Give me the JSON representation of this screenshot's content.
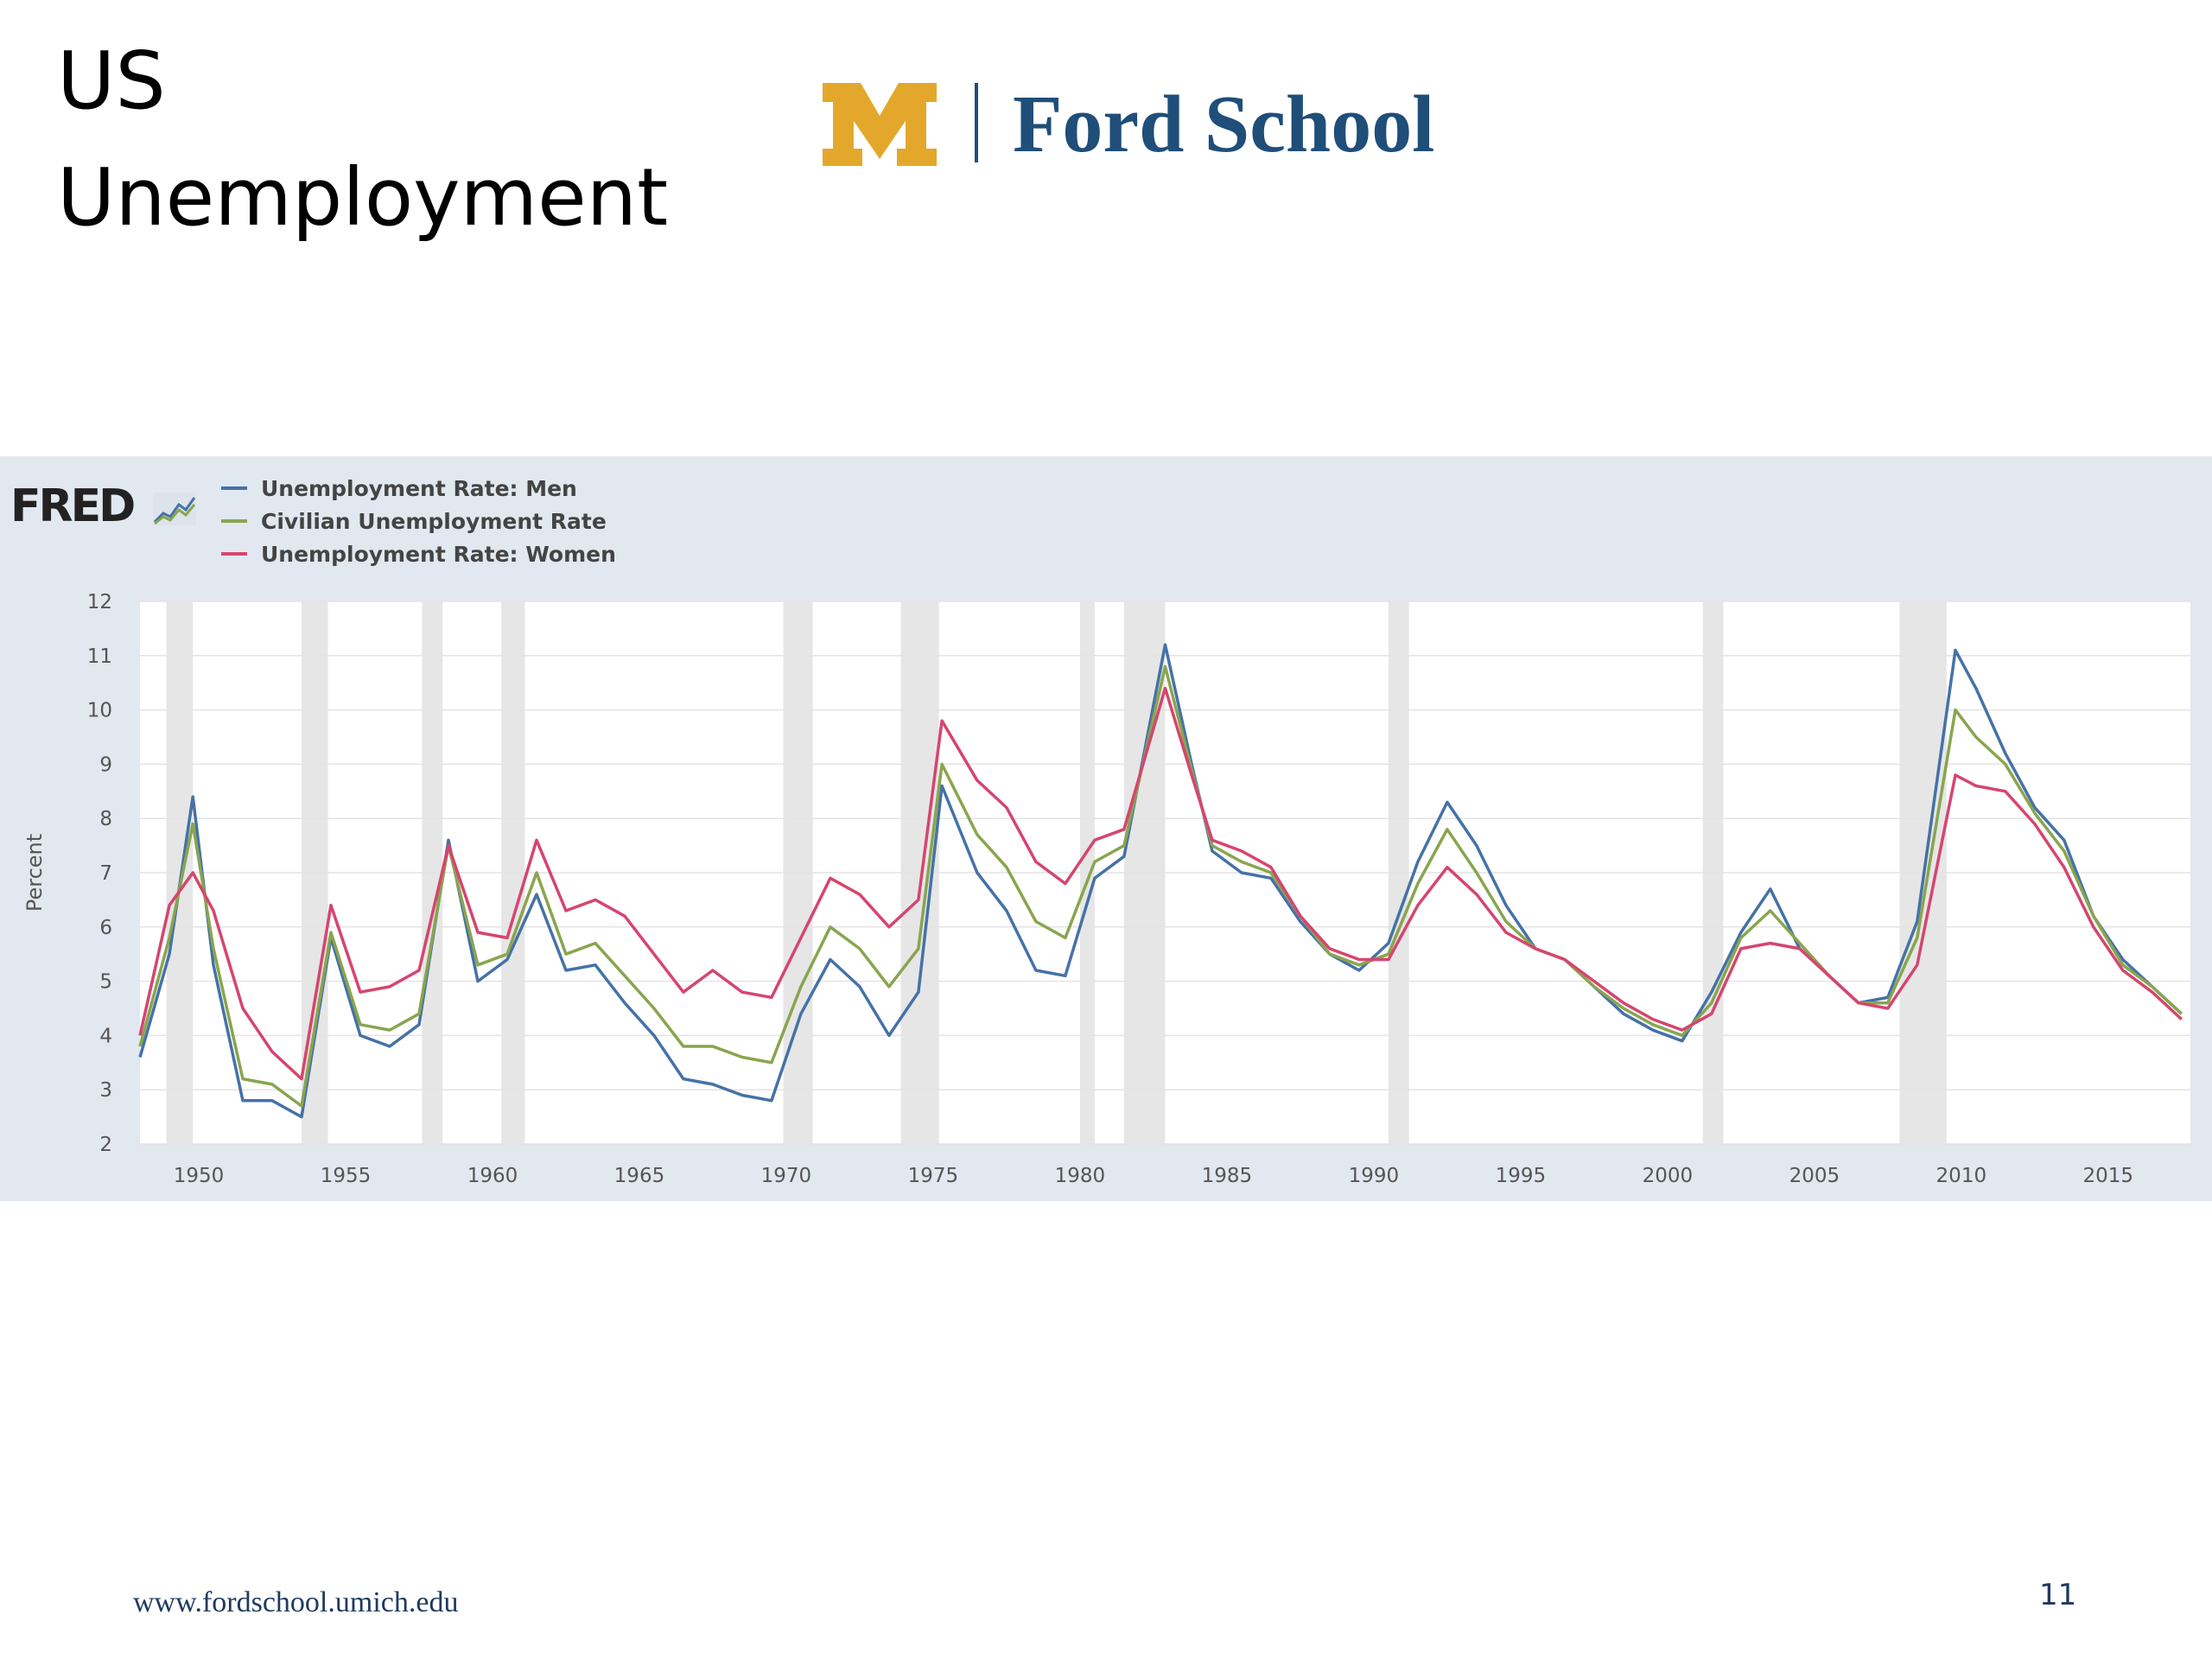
{
  "slide": {
    "title_line1": "US",
    "title_line2": "Unemployment",
    "logo_text": "Ford School",
    "footer_url": "www.fordschool.umich.edu",
    "page_number": "11"
  },
  "colors": {
    "men": "#4572a7",
    "civilian": "#89a54e",
    "women": "#d6456f",
    "recession": "#e6e6e6",
    "panel": "#e1e8f0",
    "maize": "#e3a82b",
    "blue": "#1f4e79"
  },
  "chart_data": {
    "type": "line",
    "brand": "FRED",
    "ylabel": "Percent",
    "xlabel": "",
    "ylim": [
      2,
      12
    ],
    "xlim": [
      1948,
      2017.8
    ],
    "yticks": [
      2,
      3,
      4,
      5,
      6,
      7,
      8,
      9,
      10,
      11,
      12
    ],
    "xticks": [
      1950,
      1955,
      1960,
      1965,
      1970,
      1975,
      1980,
      1985,
      1990,
      1995,
      2000,
      2005,
      2010,
      2015
    ],
    "grid": true,
    "legend_position": "top-left",
    "recessions": [
      [
        1948.9,
        1949.8
      ],
      [
        1953.5,
        1954.4
      ],
      [
        1957.6,
        1958.3
      ],
      [
        1960.3,
        1961.1
      ],
      [
        1969.9,
        1970.9
      ],
      [
        1973.9,
        1975.2
      ],
      [
        1980.0,
        1980.5
      ],
      [
        1981.5,
        1982.9
      ],
      [
        1990.5,
        1991.2
      ],
      [
        2001.2,
        2001.9
      ],
      [
        2007.9,
        2009.5
      ]
    ],
    "x": [
      1948,
      1949,
      1949.8,
      1950.5,
      1951.5,
      1952.5,
      1953.5,
      1954.5,
      1955.5,
      1956.5,
      1957.5,
      1958.5,
      1959.5,
      1960.5,
      1961.5,
      1962.5,
      1963.5,
      1964.5,
      1965.5,
      1966.5,
      1967.5,
      1968.5,
      1969.5,
      1970.5,
      1971.5,
      1972.5,
      1973.5,
      1974.5,
      1975.3,
      1976.5,
      1977.5,
      1978.5,
      1979.5,
      1980.5,
      1981.5,
      1982.9,
      1983.8,
      1984.5,
      1985.5,
      1986.5,
      1987.5,
      1988.5,
      1989.5,
      1990.5,
      1991.5,
      1992.5,
      1993.5,
      1994.5,
      1995.5,
      1996.5,
      1997.5,
      1998.5,
      1999.5,
      2000.5,
      2001.5,
      2002.5,
      2003.5,
      2004.5,
      2005.5,
      2006.5,
      2007.5,
      2008.5,
      2009.8,
      2010.5,
      2011.5,
      2012.5,
      2013.5,
      2014.5,
      2015.5,
      2016.5,
      2017.5
    ],
    "series": [
      {
        "name": "Unemployment Rate: Men",
        "values": [
          3.6,
          5.5,
          8.4,
          5.3,
          2.8,
          2.8,
          2.5,
          5.8,
          4.0,
          3.8,
          4.2,
          7.6,
          5.0,
          5.4,
          6.6,
          5.2,
          5.3,
          4.6,
          4.0,
          3.2,
          3.1,
          2.9,
          2.8,
          4.4,
          5.4,
          4.9,
          4.0,
          4.8,
          8.6,
          7.0,
          6.3,
          5.2,
          5.1,
          6.9,
          7.3,
          11.2,
          9.0,
          7.4,
          7.0,
          6.9,
          6.1,
          5.5,
          5.2,
          5.7,
          7.2,
          8.3,
          7.5,
          6.4,
          5.6,
          5.4,
          4.9,
          4.4,
          4.1,
          3.9,
          4.8,
          5.9,
          6.7,
          5.6,
          5.1,
          4.6,
          4.7,
          6.1,
          11.1,
          10.4,
          9.2,
          8.2,
          7.6,
          6.2,
          5.4,
          4.9,
          4.4
        ]
      },
      {
        "name": "Civilian Unemployment Rate",
        "values": [
          3.8,
          5.8,
          7.9,
          5.6,
          3.2,
          3.1,
          2.7,
          5.9,
          4.2,
          4.1,
          4.4,
          7.5,
          5.3,
          5.5,
          7.0,
          5.5,
          5.7,
          5.1,
          4.5,
          3.8,
          3.8,
          3.6,
          3.5,
          4.9,
          6.0,
          5.6,
          4.9,
          5.6,
          9.0,
          7.7,
          7.1,
          6.1,
          5.8,
          7.2,
          7.5,
          10.8,
          8.9,
          7.5,
          7.2,
          7.0,
          6.2,
          5.5,
          5.3,
          5.5,
          6.8,
          7.8,
          7.0,
          6.1,
          5.6,
          5.4,
          4.9,
          4.5,
          4.2,
          4.0,
          4.6,
          5.8,
          6.3,
          5.7,
          5.1,
          4.6,
          4.6,
          5.8,
          10.0,
          9.5,
          9.0,
          8.1,
          7.4,
          6.2,
          5.3,
          4.9,
          4.4
        ]
      },
      {
        "name": "Unemployment Rate: Women",
        "values": [
          4.0,
          6.4,
          7.0,
          6.3,
          4.5,
          3.7,
          3.2,
          6.4,
          4.8,
          4.9,
          5.2,
          7.5,
          5.9,
          5.8,
          7.6,
          6.3,
          6.5,
          6.2,
          5.5,
          4.8,
          5.2,
          4.8,
          4.7,
          5.8,
          6.9,
          6.6,
          6.0,
          6.5,
          9.8,
          8.7,
          8.2,
          7.2,
          6.8,
          7.6,
          7.8,
          10.4,
          8.8,
          7.6,
          7.4,
          7.1,
          6.2,
          5.6,
          5.4,
          5.4,
          6.4,
          7.1,
          6.6,
          5.9,
          5.6,
          5.4,
          5.0,
          4.6,
          4.3,
          4.1,
          4.4,
          5.6,
          5.7,
          5.6,
          5.1,
          4.6,
          4.5,
          5.3,
          8.8,
          8.6,
          8.5,
          7.9,
          7.1,
          6.0,
          5.2,
          4.8,
          4.3
        ]
      }
    ]
  }
}
